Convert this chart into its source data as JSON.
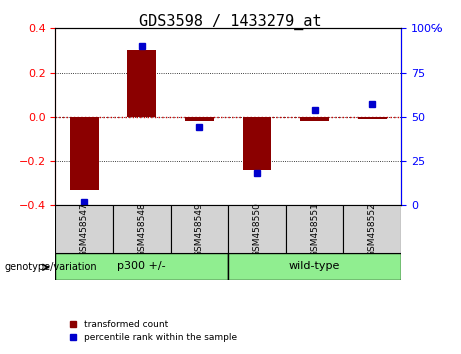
{
  "title": "GDS3598 / 1433279_at",
  "samples": [
    "GSM458547",
    "GSM458548",
    "GSM458549",
    "GSM458550",
    "GSM458551",
    "GSM458552"
  ],
  "bar_values": [
    -0.33,
    0.3,
    -0.02,
    -0.24,
    -0.02,
    -0.01
  ],
  "percentile_values": [
    2,
    90,
    44,
    18,
    54,
    57
  ],
  "groups": [
    {
      "label": "p300 +/-",
      "indices": [
        0,
        1,
        2
      ],
      "color": "#90EE90"
    },
    {
      "label": "wild-type",
      "indices": [
        3,
        4,
        5
      ],
      "color": "#90EE90"
    }
  ],
  "group_boundary": 2.5,
  "ylim_left": [
    -0.4,
    0.4
  ],
  "ylim_right": [
    0,
    100
  ],
  "yticks_left": [
    -0.4,
    -0.2,
    0.0,
    0.2,
    0.4
  ],
  "yticks_right": [
    0,
    25,
    50,
    75,
    100
  ],
  "bar_color": "#8B0000",
  "dot_color": "#0000CD",
  "zero_line_color": "#CC0000",
  "grid_color": "#000000",
  "bg_color": "#FFFFFF",
  "sample_bg_color": "#D3D3D3",
  "legend_red_label": "transformed count",
  "legend_blue_label": "percentile rank within the sample",
  "genotype_label": "genotype/variation"
}
